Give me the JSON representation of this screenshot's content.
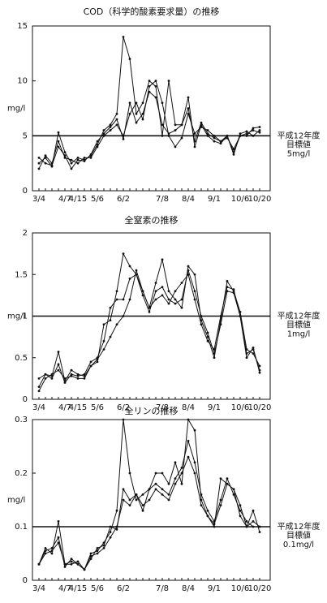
{
  "chart_data": [
    {
      "type": "line",
      "title": "COD（科学的酸素要求量）の推移",
      "ylabel": "mg/l",
      "categories": [
        "3/4",
        null,
        null,
        null,
        "4/7",
        null,
        "4/15",
        null,
        null,
        "5/6",
        null,
        null,
        null,
        "6/2",
        null,
        null,
        null,
        null,
        null,
        "7/8",
        null,
        null,
        null,
        "8/4",
        null,
        null,
        null,
        "9/1",
        null,
        null,
        null,
        "10/6",
        null,
        null,
        "10/20"
      ],
      "series": [
        {
          "color": "#111111",
          "values": [
            2.5,
            3,
            2.2,
            5.3,
            3.5,
            2.5,
            3,
            2.8,
            3.2,
            4.2,
            5.5,
            6,
            7,
            14,
            12,
            7,
            8,
            10,
            9.5,
            5,
            10,
            6,
            6,
            8.5,
            4,
            6,
            5,
            4.5,
            4.3,
            5,
            3.5,
            5,
            5.2,
            5.5,
            5.3
          ]
        },
        {
          "color": "#111111",
          "values": [
            2,
            3.2,
            2.5,
            4.5,
            3,
            2.8,
            2.5,
            3,
            3,
            4,
            5,
            5.5,
            6,
            5,
            7,
            8,
            6.5,
            9.5,
            10,
            8,
            5,
            4,
            4.8,
            7,
            5.2,
            5.8,
            5.5,
            5,
            4.5,
            5,
            3.3,
            5.2,
            5.4,
            5,
            5.5
          ]
        },
        {
          "color": "#111111",
          "values": [
            3,
            2.5,
            2.3,
            4,
            3.2,
            2,
            2.8,
            2.7,
            3.3,
            4.5,
            5.2,
            5.8,
            6.5,
            4.7,
            8,
            6.2,
            7,
            9,
            8.5,
            6,
            5.2,
            5.5,
            6,
            7.5,
            4.5,
            6.2,
            5.2,
            4.8,
            4.5,
            4.8,
            3.8,
            5,
            5,
            5.7,
            5.8
          ]
        }
      ],
      "ylim": [
        0,
        15
      ],
      "yticks": [
        0,
        5,
        10,
        15
      ],
      "target": 5,
      "target_label": [
        "平成12年度",
        "目標値",
        "5mg/l"
      ]
    },
    {
      "type": "line",
      "title": "全窒素の推移",
      "ylabel": "mg/l",
      "categories": [
        "3/4",
        null,
        null,
        null,
        "4/7",
        null,
        "4/15",
        null,
        null,
        "5/6",
        null,
        null,
        null,
        "6/2",
        null,
        null,
        null,
        null,
        null,
        "7/8",
        null,
        null,
        null,
        "8/4",
        null,
        null,
        null,
        "9/1",
        null,
        null,
        null,
        "10/6",
        null,
        null,
        "10/20"
      ],
      "series": [
        {
          "color": "#111111",
          "values": [
            0.25,
            0.3,
            0.28,
            0.57,
            0.22,
            0.35,
            0.3,
            0.28,
            0.4,
            0.45,
            0.9,
            0.95,
            1.3,
            1.75,
            1.6,
            1.5,
            1.3,
            1.1,
            1.4,
            1.68,
            1.3,
            1.2,
            1.1,
            1.6,
            1.5,
            0.95,
            0.75,
            0.5,
            0.95,
            1.42,
            1.3,
            1.05,
            0.6,
            0.55,
            0.4
          ]
        },
        {
          "color": "#111111",
          "values": [
            0.15,
            0.3,
            0.25,
            0.42,
            0.2,
            0.3,
            0.28,
            0.3,
            0.45,
            0.5,
            0.7,
            1.1,
            1.2,
            1.2,
            1.45,
            1.5,
            1.25,
            1.05,
            1.3,
            1.35,
            1.2,
            1.15,
            1.2,
            1.55,
            1.3,
            1.0,
            0.8,
            0.55,
            0.9,
            1.3,
            1.28,
            1.0,
            0.55,
            0.6,
            0.35
          ]
        },
        {
          "color": "#111111",
          "values": [
            0.1,
            0.25,
            0.3,
            0.35,
            0.25,
            0.28,
            0.25,
            0.25,
            0.4,
            0.48,
            0.6,
            0.75,
            0.9,
            1.0,
            1.2,
            1.55,
            1.3,
            1.1,
            1.2,
            1.25,
            1.15,
            1.3,
            1.4,
            1.5,
            1.2,
            0.9,
            0.7,
            0.6,
            1.0,
            1.35,
            1.32,
            1.0,
            0.5,
            0.62,
            0.32
          ]
        }
      ],
      "ylim": [
        0,
        2
      ],
      "yticks": [
        0,
        0.5,
        1,
        1.5,
        2
      ],
      "target": 1,
      "target_label": [
        "平成12年度",
        "目標値",
        "1mg/l"
      ]
    },
    {
      "type": "line",
      "title": "全リンの推移",
      "ylabel": "mg/l",
      "categories": [
        "3/4",
        null,
        null,
        null,
        "4/7",
        null,
        "4/15",
        null,
        null,
        "5/6",
        null,
        null,
        null,
        "6/2",
        null,
        null,
        null,
        null,
        null,
        "7/8",
        null,
        null,
        null,
        "8/4",
        null,
        null,
        null,
        "9/1",
        null,
        null,
        null,
        "10/6",
        null,
        null,
        "10/20"
      ],
      "series": [
        {
          "color": "#111111",
          "values": [
            0.03,
            0.06,
            0.05,
            0.11,
            0.03,
            0.035,
            0.03,
            0.02,
            0.05,
            0.055,
            0.07,
            0.09,
            0.13,
            0.3,
            0.2,
            0.15,
            0.16,
            0.17,
            0.2,
            0.2,
            0.18,
            0.22,
            0.18,
            0.3,
            0.28,
            0.15,
            0.12,
            0.1,
            0.19,
            0.18,
            0.17,
            0.12,
            0.1,
            0.13,
            0.09
          ]
        },
        {
          "color": "#111111",
          "values": [
            0.03,
            0.055,
            0.06,
            0.08,
            0.025,
            0.04,
            0.03,
            0.02,
            0.04,
            0.06,
            0.065,
            0.1,
            0.095,
            0.17,
            0.15,
            0.16,
            0.13,
            0.17,
            0.18,
            0.17,
            0.16,
            0.19,
            0.21,
            0.26,
            0.22,
            0.16,
            0.13,
            0.11,
            0.15,
            0.19,
            0.16,
            0.13,
            0.11,
            0.1,
            0.1
          ]
        },
        {
          "color": "#111111",
          "values": [
            0.03,
            0.05,
            0.055,
            0.07,
            0.03,
            0.03,
            0.035,
            0.02,
            0.045,
            0.05,
            0.06,
            0.08,
            0.1,
            0.15,
            0.14,
            0.16,
            0.14,
            0.15,
            0.17,
            0.16,
            0.15,
            0.18,
            0.2,
            0.23,
            0.2,
            0.14,
            0.12,
            0.105,
            0.14,
            0.18,
            0.17,
            0.14,
            0.1,
            0.11,
            0.1
          ]
        }
      ],
      "ylim": [
        0,
        0.3
      ],
      "yticks": [
        0,
        0.1,
        0.2,
        0.3
      ],
      "target": 0.1,
      "target_label": [
        "平成12年度",
        "目標値",
        "0.1mg/l"
      ]
    }
  ]
}
